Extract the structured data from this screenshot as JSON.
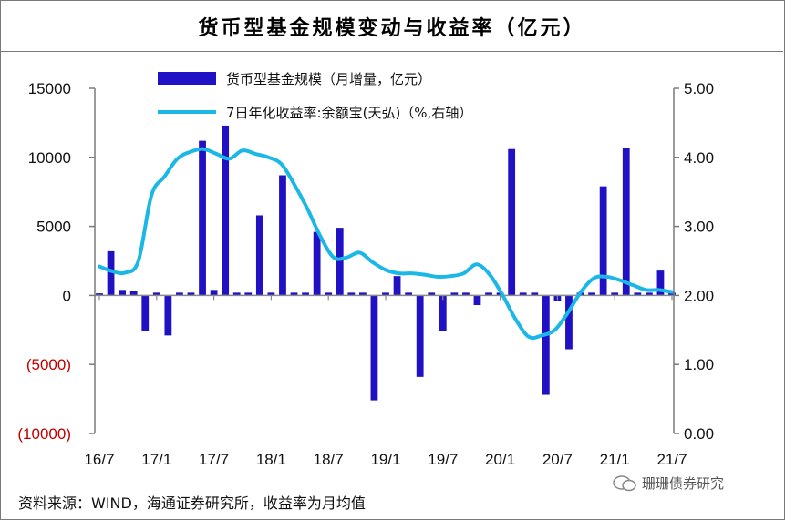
{
  "title": "货币型基金规模变动与收益率（亿元）",
  "source": "资料来源：WIND，海通证券研究所，收益率为月均值",
  "watermark": "珊珊债券研究",
  "colors": {
    "bar": "#2012c4",
    "line": "#1bb7e6",
    "axis_red": "#c00000"
  },
  "chart_data": {
    "type": "bar+line",
    "legend": {
      "bar_label": "货币型基金规模（月增量，亿元）",
      "line_label": "7日年化收益率:余额宝(天弘)（%,右轴）"
    },
    "left_axis": {
      "ylim": [
        -10000,
        15000
      ],
      "ticks": [
        15000,
        10000,
        5000,
        0,
        -5000,
        -10000
      ],
      "tick_labels": [
        "15000",
        "10000",
        "5000",
        "0",
        "(5000)",
        "(10000)"
      ]
    },
    "right_axis": {
      "ylim": [
        0,
        5
      ],
      "ticks": [
        5,
        4,
        3,
        2,
        1,
        0
      ],
      "tick_labels": [
        "5.00",
        "4.00",
        "3.00",
        "2.00",
        "1.00",
        "0.00"
      ]
    },
    "x_tick_labels": [
      "16/7",
      "17/1",
      "17/7",
      "18/1",
      "18/7",
      "19/1",
      "19/7",
      "20/1",
      "20/7",
      "21/1",
      "21/7"
    ],
    "bar_values": [
      150,
      3200,
      400,
      300,
      -2600,
      200,
      -2900,
      200,
      200,
      11200,
      400,
      12300,
      200,
      200,
      5800,
      200,
      8700,
      200,
      200,
      4600,
      200,
      4900,
      200,
      200,
      -7600,
      200,
      1400,
      200,
      -5900,
      200,
      -2600,
      200,
      200,
      -700,
      200,
      200,
      10600,
      200,
      200,
      -7200,
      -400,
      -3900,
      200,
      200,
      7900,
      200,
      10700,
      200,
      200,
      1800,
      200
    ],
    "line_values": [
      2.42,
      2.35,
      2.33,
      2.5,
      3.45,
      3.72,
      3.98,
      4.08,
      4.12,
      4.05,
      3.98,
      4.1,
      4.05,
      4.0,
      3.9,
      3.6,
      3.25,
      2.85,
      2.55,
      2.55,
      2.62,
      2.48,
      2.37,
      2.32,
      2.32,
      2.3,
      2.27,
      2.28,
      2.32,
      2.45,
      2.3,
      2.0,
      1.65,
      1.4,
      1.42,
      1.5,
      1.75,
      2.05,
      2.25,
      2.27,
      2.22,
      2.15,
      2.08,
      2.08,
      2.05
    ]
  }
}
